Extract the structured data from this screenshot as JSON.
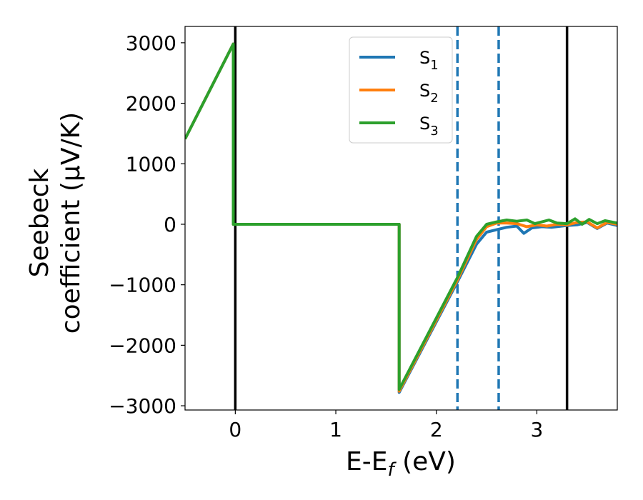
{
  "chart_data": {
    "type": "line",
    "xlabel": "E-E",
    "xlabel_sub": "f",
    "xlabel_unit": " (eV)",
    "ylabel_line1": "Seebeck",
    "ylabel_line2": "coefficient  (μV/K)",
    "xlim": [
      -0.5,
      3.8
    ],
    "ylim": [
      -3070,
      3270
    ],
    "xticks": [
      0,
      1,
      2,
      3
    ],
    "yticks": [
      -3000,
      -2000,
      -1000,
      0,
      1000,
      2000,
      3000
    ],
    "ytick_labels": [
      "−3000",
      "−2000",
      "−1000",
      "0",
      "1000",
      "2000",
      "3000"
    ],
    "grid": false,
    "legend_position": "upper-center",
    "vlines": [
      {
        "x": 0.0,
        "style": "solid",
        "color": "#000000"
      },
      {
        "x": 3.3,
        "style": "solid",
        "color": "#000000"
      },
      {
        "x": 2.21,
        "style": "dashed",
        "color": "#1f77b4"
      },
      {
        "x": 2.62,
        "style": "dashed",
        "color": "#1f77b4"
      }
    ],
    "series": [
      {
        "name": "S",
        "sub": "1",
        "color": "#1f77b4",
        "points": [
          [
            -0.5,
            1410
          ],
          [
            -0.02,
            2980
          ],
          [
            -0.02,
            0
          ],
          [
            1.63,
            0
          ],
          [
            1.63,
            -2780
          ],
          [
            2.21,
            -950
          ],
          [
            2.4,
            -330
          ],
          [
            2.5,
            -130
          ],
          [
            2.6,
            -90
          ],
          [
            2.7,
            -50
          ],
          [
            2.8,
            -30
          ],
          [
            2.87,
            -150
          ],
          [
            2.95,
            -60
          ],
          [
            3.05,
            -40
          ],
          [
            3.15,
            -50
          ],
          [
            3.25,
            -30
          ],
          [
            3.3,
            -20
          ],
          [
            3.4,
            -10
          ],
          [
            3.5,
            30
          ],
          [
            3.6,
            -70
          ],
          [
            3.7,
            20
          ],
          [
            3.8,
            -20
          ]
        ]
      },
      {
        "name": "S",
        "sub": "2",
        "color": "#ff7f0e",
        "points": [
          [
            -0.5,
            1410
          ],
          [
            -0.02,
            2980
          ],
          [
            -0.02,
            0
          ],
          [
            1.63,
            0
          ],
          [
            1.63,
            -2760
          ],
          [
            2.21,
            -920
          ],
          [
            2.4,
            -250
          ],
          [
            2.5,
            -40
          ],
          [
            2.6,
            20
          ],
          [
            2.7,
            20
          ],
          [
            2.8,
            10
          ],
          [
            2.9,
            -40
          ],
          [
            3.0,
            -10
          ],
          [
            3.1,
            -30
          ],
          [
            3.2,
            0
          ],
          [
            3.3,
            -10
          ],
          [
            3.4,
            30
          ],
          [
            3.5,
            40
          ],
          [
            3.6,
            -60
          ],
          [
            3.7,
            30
          ],
          [
            3.8,
            0
          ]
        ]
      },
      {
        "name": "S",
        "sub": "3",
        "color": "#2ca02c",
        "points": [
          [
            -0.5,
            1410
          ],
          [
            -0.02,
            2980
          ],
          [
            -0.02,
            0
          ],
          [
            1.63,
            0
          ],
          [
            1.63,
            -2730
          ],
          [
            2.21,
            -880
          ],
          [
            2.4,
            -200
          ],
          [
            2.5,
            0
          ],
          [
            2.6,
            40
          ],
          [
            2.7,
            70
          ],
          [
            2.8,
            50
          ],
          [
            2.9,
            70
          ],
          [
            2.98,
            10
          ],
          [
            3.05,
            40
          ],
          [
            3.12,
            70
          ],
          [
            3.2,
            20
          ],
          [
            3.3,
            10
          ],
          [
            3.38,
            90
          ],
          [
            3.45,
            0
          ],
          [
            3.52,
            80
          ],
          [
            3.6,
            10
          ],
          [
            3.68,
            60
          ],
          [
            3.8,
            20
          ]
        ]
      }
    ]
  }
}
